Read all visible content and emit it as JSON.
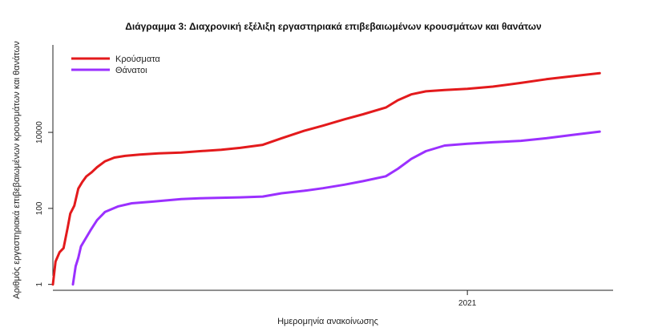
{
  "chart_data": {
    "type": "line",
    "title": "Διάγραμμα 3: Διαχρονική εξέλιξη εργαστηριακά επιβεβαιωμένων κρουσμάτων και θανάτων",
    "xlabel": "Ημερομηνία ανακοίνωσης",
    "ylabel": "Αριθμός εργαστηριακά επιβεβαιωμένων κρουσμάτων και θανάτων",
    "y_scale": "log",
    "yticks": [
      1,
      100,
      10000
    ],
    "ytick_labels": [
      "1",
      "100",
      "10000"
    ],
    "xticks": [
      "2021-01-01"
    ],
    "xtick_labels": [
      "2021"
    ],
    "xlim": [
      "2020-02-26",
      "2021-04-20"
    ],
    "ylim": [
      0.7,
      2000000
    ],
    "grid": false,
    "legend": "top-left",
    "series": [
      {
        "name": "Κρούσματα",
        "color": "#e31a1c",
        "x": [
          "2020-02-26",
          "2020-02-28",
          "2020-03-02",
          "2020-03-05",
          "2020-03-08",
          "2020-03-10",
          "2020-03-13",
          "2020-03-16",
          "2020-03-19",
          "2020-03-22",
          "2020-03-26",
          "2020-03-30",
          "2020-04-05",
          "2020-04-12",
          "2020-04-20",
          "2020-05-01",
          "2020-05-15",
          "2020-06-01",
          "2020-06-15",
          "2020-07-01",
          "2020-07-15",
          "2020-08-01",
          "2020-08-15",
          "2020-09-01",
          "2020-09-15",
          "2020-10-01",
          "2020-10-15",
          "2020-11-01",
          "2020-11-10",
          "2020-11-20",
          "2020-12-01",
          "2020-12-15",
          "2021-01-01",
          "2021-01-20",
          "2021-02-10",
          "2021-03-01",
          "2021-03-20",
          "2021-04-10"
        ],
        "y": [
          1,
          4,
          7,
          9,
          31,
          73,
          117,
          331,
          495,
          695,
          892,
          1212,
          1735,
          2170,
          2400,
          2600,
          2800,
          2950,
          3200,
          3500,
          3900,
          4700,
          7000,
          11000,
          15000,
          22000,
          30000,
          45000,
          70000,
          100000,
          120000,
          130000,
          140000,
          160000,
          200000,
          250000,
          300000,
          360000
        ]
      },
      {
        "name": "Θάνατοι",
        "color": "#9b30ff",
        "x": [
          "2020-03-12",
          "2020-03-14",
          "2020-03-16",
          "2020-03-18",
          "2020-03-21",
          "2020-03-25",
          "2020-03-30",
          "2020-04-05",
          "2020-04-15",
          "2020-04-25",
          "2020-05-10",
          "2020-06-01",
          "2020-06-15",
          "2020-07-01",
          "2020-07-15",
          "2020-08-01",
          "2020-08-15",
          "2020-09-01",
          "2020-09-15",
          "2020-10-01",
          "2020-10-15",
          "2020-11-01",
          "2020-11-10",
          "2020-11-20",
          "2020-12-01",
          "2020-12-15",
          "2021-01-01",
          "2021-01-20",
          "2021-02-10",
          "2021-03-01",
          "2021-03-20",
          "2021-04-10"
        ],
        "y": [
          1,
          3,
          5,
          10,
          15,
          26,
          49,
          81,
          113,
          136,
          150,
          175,
          185,
          190,
          195,
          205,
          250,
          290,
          340,
          420,
          520,
          700,
          1100,
          2000,
          3200,
          4500,
          5000,
          5500,
          6000,
          7000,
          8500,
          10500
        ]
      }
    ]
  }
}
